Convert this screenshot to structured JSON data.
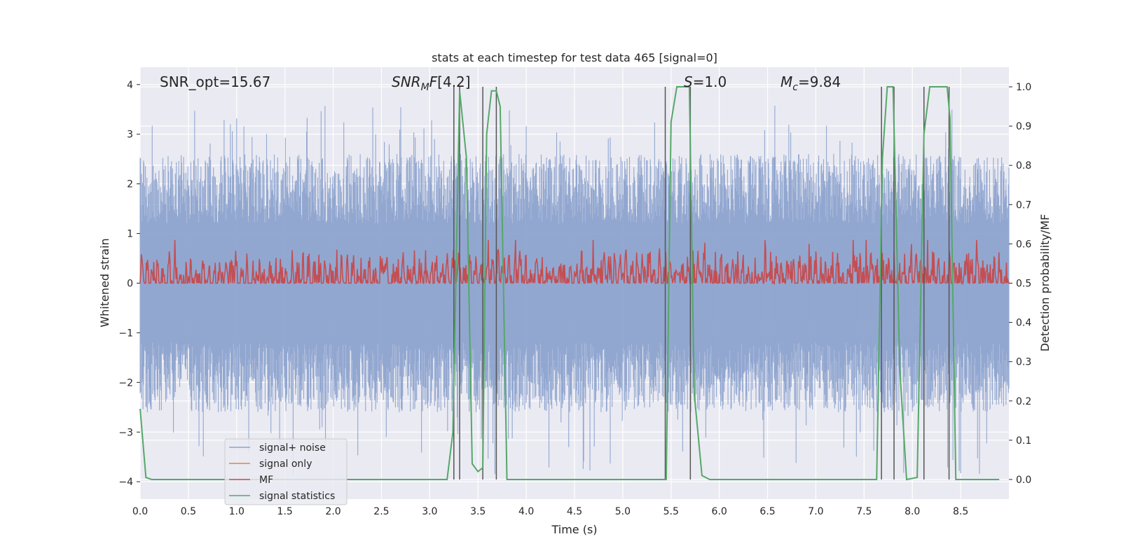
{
  "chart_data": {
    "type": "line",
    "title": "stats at each timestep for test data 465 [signal=0]",
    "xlabel": "Time (s)",
    "ylabel": "Whitened strain",
    "y2label": "Detection probability/MF",
    "xlim": [
      0.0,
      9.0
    ],
    "ylim": [
      -4.35,
      4.35
    ],
    "y2lim": [
      -0.05,
      1.05
    ],
    "xticks": [
      "0.0",
      "0.5",
      "1.0",
      "1.5",
      "2.0",
      "2.5",
      "3.0",
      "3.5",
      "4.0",
      "4.5",
      "5.0",
      "5.5",
      "6.0",
      "6.5",
      "7.0",
      "7.5",
      "8.0",
      "8.5"
    ],
    "yticks": [
      "−4",
      "−3",
      "−2",
      "−1",
      "0",
      "1",
      "2",
      "3",
      "4"
    ],
    "y2ticks": [
      "0.0",
      "0.1",
      "0.2",
      "0.3",
      "0.4",
      "0.5",
      "0.6",
      "0.7",
      "0.8",
      "0.9",
      "1.0"
    ],
    "annotations": {
      "snr_opt": "SNR_opt=15.67",
      "snr_mf": "[4.2]",
      "s": "=1.0",
      "mc": "=9.84"
    },
    "legend": [
      "signal+ noise",
      "signal only",
      "MF",
      "signal statistics"
    ],
    "colors": {
      "noise": "#8da3cd",
      "signal_only": "#dd8452",
      "mf": "#c44e52",
      "stats": "#55a868",
      "vlines": "#555555",
      "background": "#eaeaf2",
      "grid": "#ffffff"
    },
    "series": [
      {
        "name": "signal statistics",
        "axis": "right",
        "x": [
          0.0,
          0.06,
          0.12,
          1.0,
          2.0,
          3.0,
          3.18,
          3.24,
          3.31,
          3.38,
          3.44,
          3.5,
          3.55,
          3.59,
          3.64,
          3.69,
          3.73,
          3.8,
          4.5,
          5.0,
          5.45,
          5.5,
          5.56,
          5.69,
          5.74,
          5.82,
          5.9,
          6.5,
          7.0,
          7.5,
          7.63,
          7.69,
          7.74,
          7.8,
          7.87,
          7.94,
          8.05,
          8.12,
          8.18,
          8.25,
          8.36,
          8.39,
          8.45,
          8.9
        ],
        "y": [
          0.18,
          0.005,
          0.0,
          0.0,
          0.0,
          0.0,
          0.0,
          0.12,
          0.99,
          0.82,
          0.04,
          0.02,
          0.03,
          0.88,
          0.99,
          0.99,
          0.95,
          0.0,
          0.0,
          0.0,
          0.0,
          0.91,
          1.0,
          1.0,
          0.22,
          0.01,
          0.0,
          0.0,
          0.0,
          0.0,
          0.0,
          0.82,
          1.0,
          1.0,
          0.28,
          0.0,
          0.005,
          0.88,
          1.0,
          1.0,
          1.0,
          0.92,
          0.0,
          0.0
        ]
      }
    ],
    "vlines": [
      3.25,
      3.31,
      3.55,
      3.69,
      5.44,
      5.7,
      7.68,
      7.81,
      8.12,
      8.38
    ],
    "noise_envelope": {
      "typical_high": 2.0,
      "typical_low": -2.0,
      "max": 3.6,
      "min": -3.9
    }
  }
}
